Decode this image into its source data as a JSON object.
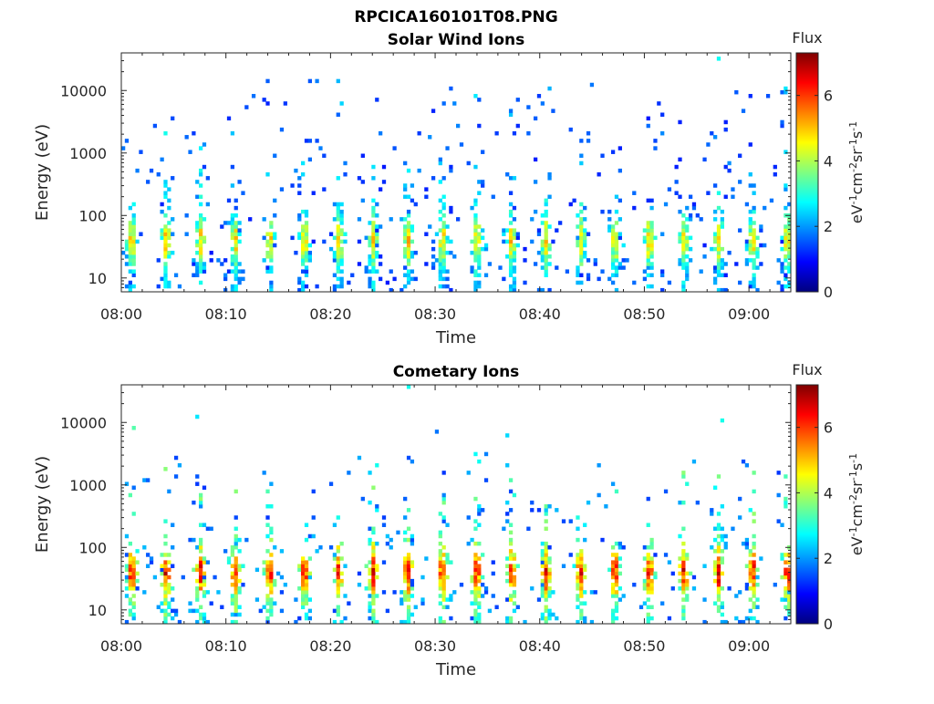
{
  "figure_title": "RPCICA160101T08.PNG",
  "colormap": [
    "#00007f",
    "#0000ff",
    "#0080ff",
    "#00ffff",
    "#80ff80",
    "#ffff00",
    "#ff8000",
    "#ff0000",
    "#7f0000"
  ],
  "chart_data": [
    {
      "type": "heatmap",
      "title": "Solar Wind Ions",
      "xlabel": "Time",
      "ylabel": "Energy (eV)",
      "x_range": [
        "08:00",
        "09:04"
      ],
      "x_ticks": [
        "08:00",
        "08:10",
        "08:20",
        "08:30",
        "08:40",
        "08:50",
        "09:00"
      ],
      "y_scale": "log",
      "y_range": [
        6,
        40000
      ],
      "y_ticks": [
        10,
        100,
        1000,
        10000
      ],
      "y_tick_labels": [
        "10",
        "100",
        "1000",
        "10000"
      ],
      "colorbar": {
        "title": "Flux",
        "label": "eV-1cm-2sr-1s-1",
        "range": [
          0,
          7.3
        ],
        "ticks": [
          0,
          2,
          4,
          6
        ],
        "tick_labels": [
          "0",
          "2",
          "4",
          "6"
        ]
      },
      "pattern": {
        "burst_period_min": 3.3,
        "core_energy_eV": 40,
        "core_flux_max": 5.0,
        "background_flux": 1.5,
        "background_extent_eV": 15000
      }
    },
    {
      "type": "heatmap",
      "title": "Cometary Ions",
      "xlabel": "Time",
      "ylabel": "Energy (eV)",
      "x_range": [
        "08:00",
        "09:04"
      ],
      "x_ticks": [
        "08:00",
        "08:10",
        "08:20",
        "08:30",
        "08:40",
        "08:50",
        "09:00"
      ],
      "y_scale": "log",
      "y_range": [
        6,
        40000
      ],
      "y_ticks": [
        10,
        100,
        1000,
        10000
      ],
      "y_tick_labels": [
        "10",
        "100",
        "1000",
        "10000"
      ],
      "colorbar": {
        "title": "Flux",
        "label": "eV-1cm-2sr-1s-1",
        "range": [
          0,
          7.3
        ],
        "ticks": [
          0,
          2,
          4,
          6
        ],
        "tick_labels": [
          "0",
          "2",
          "4",
          "6"
        ]
      },
      "pattern": {
        "burst_period_min": 3.3,
        "core_energy_eV": 40,
        "core_flux_max": 6.5,
        "background_flux": 1.8,
        "background_extent_eV": 3000
      }
    }
  ]
}
